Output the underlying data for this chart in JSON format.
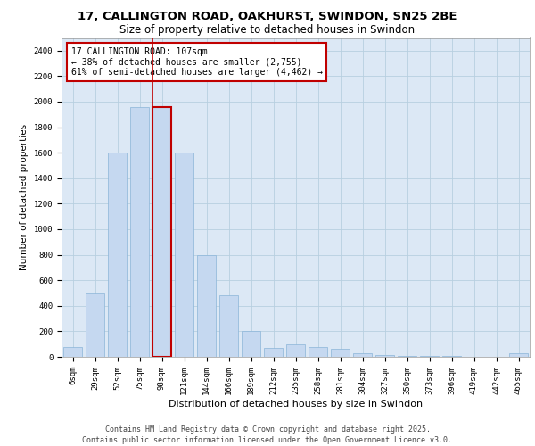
{
  "title": "17, CALLINGTON ROAD, OAKHURST, SWINDON, SN25 2BE",
  "subtitle": "Size of property relative to detached houses in Swindon",
  "xlabel": "Distribution of detached houses by size in Swindon",
  "ylabel": "Number of detached properties",
  "categories": [
    "6sqm",
    "29sqm",
    "52sqm",
    "75sqm",
    "98sqm",
    "121sqm",
    "144sqm",
    "166sqm",
    "189sqm",
    "212sqm",
    "235sqm",
    "258sqm",
    "281sqm",
    "304sqm",
    "327sqm",
    "350sqm",
    "373sqm",
    "396sqm",
    "419sqm",
    "442sqm",
    "465sqm"
  ],
  "values": [
    80,
    500,
    1600,
    1960,
    1960,
    1600,
    800,
    480,
    200,
    70,
    100,
    80,
    60,
    30,
    15,
    10,
    8,
    5,
    3,
    2,
    30
  ],
  "bar_color": "#c5d8f0",
  "bar_edge_color": "#8ab4d8",
  "highlight_index": 4,
  "highlight_bar_edge_color": "#c00000",
  "vline_color": "#c00000",
  "annotation_box_text": "17 CALLINGTON ROAD: 107sqm\n← 38% of detached houses are smaller (2,755)\n61% of semi-detached houses are larger (4,462) →",
  "annotation_box_edge_color": "#c00000",
  "annotation_box_facecolor": "white",
  "ylim": [
    0,
    2500
  ],
  "yticks": [
    0,
    200,
    400,
    600,
    800,
    1000,
    1200,
    1400,
    1600,
    1800,
    2000,
    2200,
    2400
  ],
  "grid_color": "#b8cfe0",
  "background_color": "#dce8f5",
  "footer_line1": "Contains HM Land Registry data © Crown copyright and database right 2025.",
  "footer_line2": "Contains public sector information licensed under the Open Government Licence v3.0.",
  "title_fontsize": 9.5,
  "subtitle_fontsize": 8.5,
  "xlabel_fontsize": 8,
  "ylabel_fontsize": 7.5,
  "tick_fontsize": 6.5,
  "annotation_fontsize": 7,
  "footer_fontsize": 6
}
